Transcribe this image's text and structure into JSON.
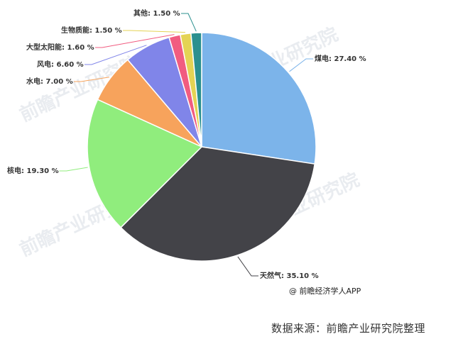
{
  "chart_data": {
    "type": "pie",
    "slices": [
      {
        "label": "煤电",
        "value": 27.4,
        "display": "27.40 %",
        "color": "#7cb4ea"
      },
      {
        "label": "天然气",
        "value": 35.1,
        "display": "35.10 %",
        "color": "#434348"
      },
      {
        "label": "核电",
        "value": 19.3,
        "display": "19.30 %",
        "color": "#90ed7d"
      },
      {
        "label": "水电",
        "value": 7.0,
        "display": "7.00 %",
        "color": "#f7a35c"
      },
      {
        "label": "风电",
        "value": 6.6,
        "display": "6.60 %",
        "color": "#8085e9"
      },
      {
        "label": "大型太阳能",
        "value": 1.6,
        "display": "1.60 %",
        "color": "#f15c80"
      },
      {
        "label": "生物质能",
        "value": 1.5,
        "display": "1.50 %",
        "color": "#e4d354"
      },
      {
        "label": "其他",
        "value": 1.5,
        "display": "1.50 %",
        "color": "#2b908f"
      }
    ]
  },
  "credit": "@ 前瞻经济学人APP",
  "source": "数据来源：前瞻产业研究院整理",
  "watermark": "前瞻产业研究院"
}
